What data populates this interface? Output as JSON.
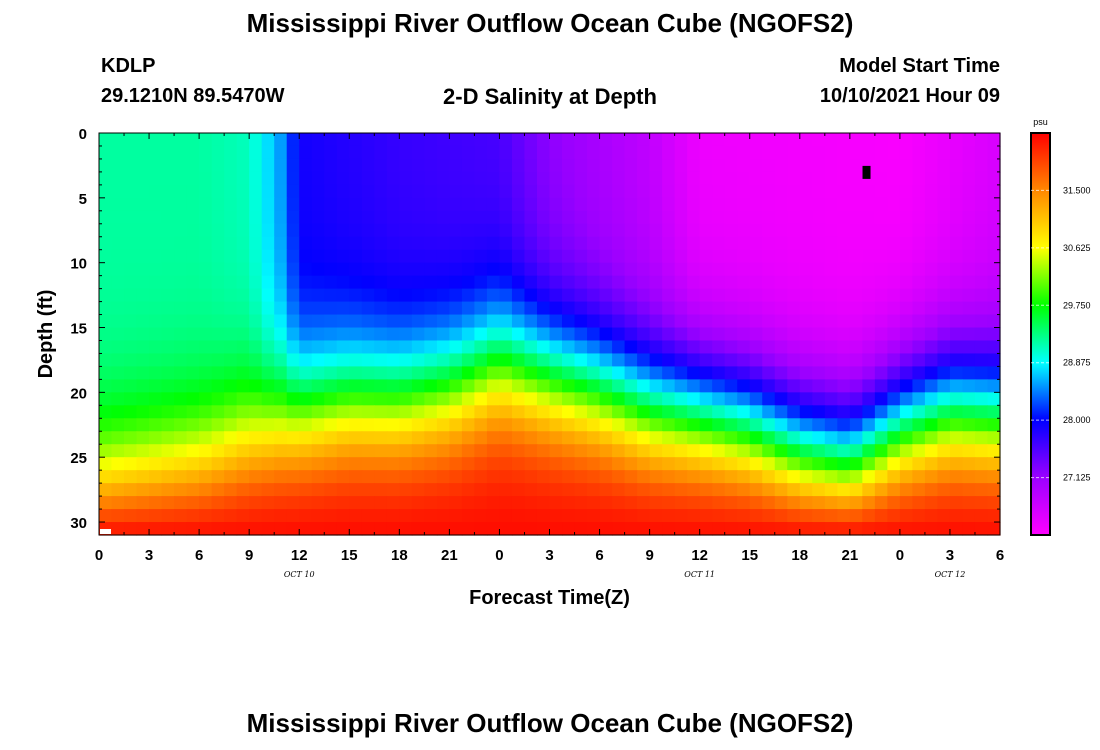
{
  "page": {
    "title_top": "Mississippi River Outflow Ocean Cube (NGOFS2)",
    "title_bottom": "Mississippi River Outflow Ocean Cube (NGOFS2)",
    "station_id": "KDLP",
    "station_coords": "29.1210N  89.5470W",
    "subtitle": "2-D Salinity at Depth",
    "model_start_label": "Model Start Time",
    "model_start_value": "10/10/2021 Hour 09"
  },
  "chart_data": {
    "type": "heatmap",
    "title": "2-D Salinity at Depth",
    "xlabel": "Forecast Time(Z)",
    "ylabel": "Depth (ft)",
    "x_range_hours": [
      0,
      54
    ],
    "y_range": [
      0,
      31
    ],
    "y_inverted": true,
    "x_tick_labels": [
      "0",
      "3",
      "6",
      "9",
      "12",
      "15",
      "18",
      "21",
      "0",
      "3",
      "6",
      "9",
      "12",
      "15",
      "18",
      "21",
      "0",
      "3",
      "6"
    ],
    "y_ticks": [
      0,
      5,
      10,
      15,
      20,
      25,
      30
    ],
    "date_labels": [
      {
        "text": "OCT 10",
        "hour": 12
      },
      {
        "text": "OCT 11",
        "hour": 36
      },
      {
        "text": "OCT 12",
        "hour": 51
      }
    ],
    "colorbar": {
      "unit": "psu",
      "min": 26.25,
      "max": 32.375,
      "ticks": [
        27.125,
        28.0,
        28.875,
        29.75,
        30.625,
        31.5
      ],
      "tick_labels": [
        "27.125",
        "28.000",
        "28.875",
        "29.750",
        "30.625",
        "31.500"
      ],
      "colors": [
        "#ff00ff",
        "#9b00ff",
        "#0000ff",
        "#00ffff",
        "#00ff00",
        "#ffff00",
        "#ff8800",
        "#ff0000"
      ]
    },
    "marker": {
      "hour": 46,
      "depth": 3
    },
    "salinity_model": {
      "deep_value_at_31ft": 32.3,
      "halocline_depth_ft": [
        {
          "hour": 0,
          "depth": 28
        },
        {
          "hour": 6,
          "depth": 26
        },
        {
          "hour": 9,
          "depth": 24
        },
        {
          "hour": 12,
          "depth": 22
        },
        {
          "hour": 15,
          "depth": 21
        },
        {
          "hour": 18,
          "depth": 21
        },
        {
          "hour": 21,
          "depth": 20
        },
        {
          "hour": 24,
          "depth": 18
        },
        {
          "hour": 27,
          "depth": 19
        },
        {
          "hour": 30,
          "depth": 20
        },
        {
          "hour": 33,
          "depth": 21.5
        },
        {
          "hour": 36,
          "depth": 22
        },
        {
          "hour": 39,
          "depth": 23
        },
        {
          "hour": 42,
          "depth": 25
        },
        {
          "hour": 45,
          "depth": 26
        },
        {
          "hour": 48,
          "depth": 23
        },
        {
          "hour": 51,
          "depth": 21.5
        },
        {
          "hour": 54,
          "depth": 22
        }
      ],
      "surface_salinity": [
        {
          "hour": 0,
          "value": 29.2
        },
        {
          "hour": 6,
          "value": 29.2
        },
        {
          "hour": 9,
          "value": 29.1
        },
        {
          "hour": 11,
          "value": 28.5
        },
        {
          "hour": 12,
          "value": 27.9
        },
        {
          "hour": 18,
          "value": 27.7
        },
        {
          "hour": 24,
          "value": 27.6
        },
        {
          "hour": 27,
          "value": 27.2
        },
        {
          "hour": 33,
          "value": 26.8
        },
        {
          "hour": 36,
          "value": 26.4
        },
        {
          "hour": 48,
          "value": 26.3
        },
        {
          "hour": 54,
          "value": 26.6
        }
      ]
    }
  }
}
